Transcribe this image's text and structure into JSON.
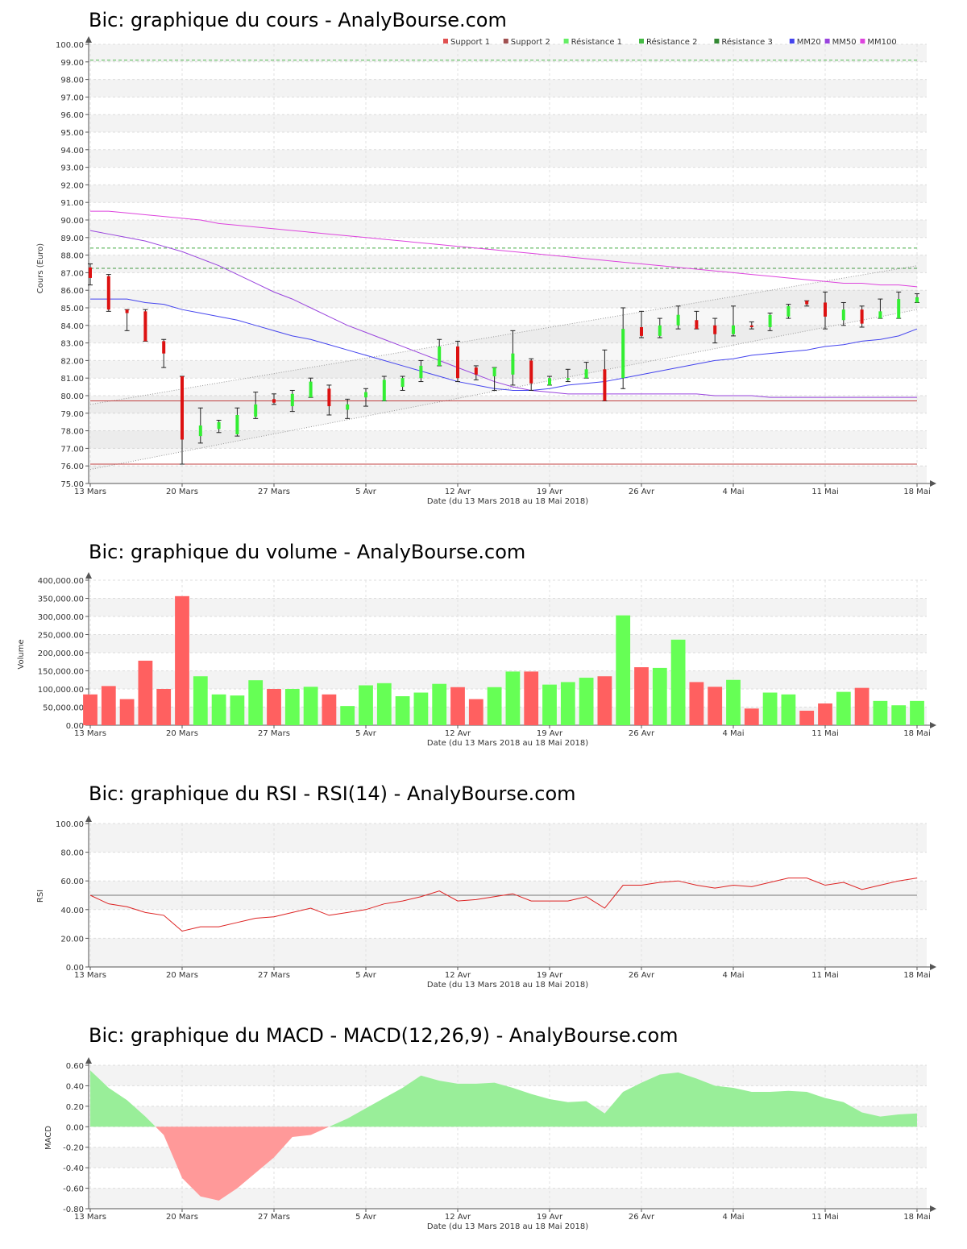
{
  "chart_data": [
    {
      "type": "candlestick",
      "title": "Bic: graphique du cours - AnalyBourse.com",
      "xlabel": "Date (du 13 Mars 2018 au 18 Mai 2018)",
      "ylabel": "Cours (Euro)",
      "ylim": [
        75,
        100
      ],
      "yticks": [
        "75.00",
        "76.00",
        "77.00",
        "78.00",
        "79.00",
        "80.00",
        "81.00",
        "82.00",
        "83.00",
        "84.00",
        "85.00",
        "86.00",
        "87.00",
        "88.00",
        "89.00",
        "90.00",
        "91.00",
        "92.00",
        "93.00",
        "94.00",
        "95.00",
        "96.00",
        "97.00",
        "98.00",
        "99.00",
        "100.00"
      ],
      "xticks": [
        {
          "i": 0,
          "label": "13 Mars"
        },
        {
          "i": 5,
          "label": "20 Mars"
        },
        {
          "i": 10,
          "label": "27 Mars"
        },
        {
          "i": 15,
          "label": "5 Avr"
        },
        {
          "i": 20,
          "label": "12 Avr"
        },
        {
          "i": 25,
          "label": "19 Avr"
        },
        {
          "i": 30,
          "label": "26 Avr"
        },
        {
          "i": 35,
          "label": "4 Mai"
        },
        {
          "i": 40,
          "label": "11 Mai"
        },
        {
          "i": 45,
          "label": "18 Mai"
        }
      ],
      "legend": [
        {
          "name": "Support 1",
          "color": "#e05050"
        },
        {
          "name": "Support 2",
          "color": "#a05050"
        },
        {
          "name": "Résistance 1",
          "color": "#66ee66"
        },
        {
          "name": "Résistance 2",
          "color": "#44bb44"
        },
        {
          "name": "Résistance 3",
          "color": "#338833"
        },
        {
          "name": "MM20",
          "color": "#4444ee"
        },
        {
          "name": "MM50",
          "color": "#9944dd"
        },
        {
          "name": "MM100",
          "color": "#dd44dd"
        }
      ],
      "levels": {
        "support_1": 79.7,
        "support_2": 76.1,
        "resistance_1": 87.25,
        "resistance_2": 88.4,
        "resistance_3": 99.1
      },
      "trend_upper": [
        79.5,
        87.4
      ],
      "trend_lower": [
        75.8,
        84.9
      ],
      "candles": [
        {
          "o": 87.3,
          "c": 86.7,
          "h": 87.5,
          "l": 86.3
        },
        {
          "o": 86.8,
          "c": 84.9,
          "h": 86.9,
          "l": 84.8
        },
        {
          "o": 84.9,
          "c": 84.7,
          "h": 84.9,
          "l": 83.7
        },
        {
          "o": 84.8,
          "c": 83.1,
          "h": 84.9,
          "l": 83.1
        },
        {
          "o": 83.1,
          "c": 82.4,
          "h": 83.2,
          "l": 81.6
        },
        {
          "o": 81.1,
          "c": 77.5,
          "h": 81.1,
          "l": 76.1
        },
        {
          "o": 77.7,
          "c": 78.3,
          "h": 79.3,
          "l": 77.3
        },
        {
          "o": 78.1,
          "c": 78.5,
          "h": 78.6,
          "l": 77.9
        },
        {
          "o": 77.8,
          "c": 78.9,
          "h": 79.3,
          "l": 77.7
        },
        {
          "o": 78.8,
          "c": 79.5,
          "h": 80.2,
          "l": 78.7
        },
        {
          "o": 79.8,
          "c": 79.6,
          "h": 80.1,
          "l": 79.5
        },
        {
          "o": 79.4,
          "c": 80.1,
          "h": 80.3,
          "l": 79.1
        },
        {
          "o": 79.9,
          "c": 80.8,
          "h": 81.0,
          "l": 79.9
        },
        {
          "o": 80.4,
          "c": 79.4,
          "h": 80.6,
          "l": 78.9
        },
        {
          "o": 79.2,
          "c": 79.5,
          "h": 79.8,
          "l": 78.7
        },
        {
          "o": 79.9,
          "c": 80.2,
          "h": 80.4,
          "l": 79.4
        },
        {
          "o": 79.7,
          "c": 80.9,
          "h": 81.1,
          "l": 79.7
        },
        {
          "o": 80.5,
          "c": 81.0,
          "h": 81.1,
          "l": 80.3
        },
        {
          "o": 81.0,
          "c": 81.7,
          "h": 82.0,
          "l": 80.8
        },
        {
          "o": 81.7,
          "c": 82.8,
          "h": 83.2,
          "l": 81.7
        },
        {
          "o": 82.8,
          "c": 81.0,
          "h": 83.1,
          "l": 80.8
        },
        {
          "o": 81.6,
          "c": 81.2,
          "h": 81.7,
          "l": 80.9
        },
        {
          "o": 81.1,
          "c": 81.6,
          "h": 81.6,
          "l": 80.3
        },
        {
          "o": 81.2,
          "c": 82.4,
          "h": 83.7,
          "l": 80.6
        },
        {
          "o": 82.0,
          "c": 80.7,
          "h": 82.1,
          "l": 80.3
        },
        {
          "o": 80.6,
          "c": 81.0,
          "h": 81.1,
          "l": 80.6
        },
        {
          "o": 80.9,
          "c": 81.0,
          "h": 81.5,
          "l": 80.8
        },
        {
          "o": 81.0,
          "c": 81.5,
          "h": 81.9,
          "l": 81.0
        },
        {
          "o": 81.5,
          "c": 79.7,
          "h": 82.6,
          "l": 79.7
        },
        {
          "o": 81.0,
          "c": 83.8,
          "h": 85.0,
          "l": 80.4
        },
        {
          "o": 83.9,
          "c": 83.4,
          "h": 84.8,
          "l": 83.3
        },
        {
          "o": 83.4,
          "c": 84.0,
          "h": 84.4,
          "l": 83.3
        },
        {
          "o": 84.0,
          "c": 84.6,
          "h": 85.1,
          "l": 83.8
        },
        {
          "o": 84.3,
          "c": 83.8,
          "h": 84.8,
          "l": 83.8
        },
        {
          "o": 84.0,
          "c": 83.5,
          "h": 84.4,
          "l": 83.0
        },
        {
          "o": 83.5,
          "c": 84.0,
          "h": 85.1,
          "l": 83.4
        },
        {
          "o": 84.0,
          "c": 83.9,
          "h": 84.2,
          "l": 83.8
        },
        {
          "o": 83.9,
          "c": 84.6,
          "h": 84.7,
          "l": 83.7
        },
        {
          "o": 84.5,
          "c": 85.1,
          "h": 85.2,
          "l": 84.4
        },
        {
          "o": 85.4,
          "c": 85.2,
          "h": 85.4,
          "l": 85.1
        },
        {
          "o": 85.3,
          "c": 84.5,
          "h": 85.9,
          "l": 83.8
        },
        {
          "o": 84.3,
          "c": 84.9,
          "h": 85.3,
          "l": 84.0
        },
        {
          "o": 84.9,
          "c": 84.1,
          "h": 85.1,
          "l": 83.9
        },
        {
          "o": 84.4,
          "c": 84.8,
          "h": 85.5,
          "l": 84.4
        },
        {
          "o": 84.4,
          "c": 85.5,
          "h": 85.9,
          "l": 84.4
        },
        {
          "o": 85.3,
          "c": 85.6,
          "h": 85.8,
          "l": 85.3
        }
      ],
      "mm20": [
        85.5,
        85.5,
        85.5,
        85.3,
        85.2,
        84.9,
        84.7,
        84.5,
        84.3,
        84.0,
        83.7,
        83.4,
        83.2,
        82.9,
        82.6,
        82.3,
        82.0,
        81.7,
        81.4,
        81.1,
        80.8,
        80.6,
        80.4,
        80.3,
        80.3,
        80.4,
        80.6,
        80.7,
        80.8,
        81.0,
        81.2,
        81.4,
        81.6,
        81.8,
        82.0,
        82.1,
        82.3,
        82.4,
        82.5,
        82.6,
        82.8,
        82.9,
        83.1,
        83.2,
        83.4,
        83.8
      ],
      "mm50": [
        89.4,
        89.2,
        89.0,
        88.8,
        88.5,
        88.2,
        87.8,
        87.4,
        86.9,
        86.4,
        85.9,
        85.5,
        85.0,
        84.5,
        84.0,
        83.6,
        83.2,
        82.8,
        82.4,
        82.0,
        81.6,
        81.2,
        80.8,
        80.5,
        80.3,
        80.2,
        80.1,
        80.1,
        80.1,
        80.1,
        80.1,
        80.1,
        80.1,
        80.1,
        80.0,
        80.0,
        80.0,
        79.9,
        79.9,
        79.9,
        79.9,
        79.9,
        79.9,
        79.9,
        79.9,
        79.9
      ],
      "mm100": [
        90.5,
        90.5,
        90.4,
        90.3,
        90.2,
        90.1,
        90.0,
        89.8,
        89.7,
        89.6,
        89.5,
        89.4,
        89.3,
        89.2,
        89.1,
        89.0,
        88.9,
        88.8,
        88.7,
        88.6,
        88.5,
        88.4,
        88.3,
        88.2,
        88.1,
        88.0,
        87.9,
        87.8,
        87.7,
        87.6,
        87.5,
        87.4,
        87.3,
        87.2,
        87.1,
        87.0,
        86.9,
        86.8,
        86.7,
        86.6,
        86.5,
        86.4,
        86.4,
        86.3,
        86.3,
        86.2
      ]
    },
    {
      "type": "bar",
      "title": "Bic: graphique du volume - AnalyBourse.com",
      "xlabel": "Date (du 13 Mars 2018 au 18 Mai 2018)",
      "ylabel": "Volume",
      "ylim": [
        0,
        400000
      ],
      "yticks": [
        "0.00",
        "50,000.00",
        "100,000.00",
        "150,000.00",
        "200,000.00",
        "250,000.00",
        "300,000.00",
        "350,000.00",
        "400,000.00"
      ],
      "xticks": [
        {
          "i": 0,
          "label": "13 Mars"
        },
        {
          "i": 5,
          "label": "20 Mars"
        },
        {
          "i": 10,
          "label": "27 Mars"
        },
        {
          "i": 15,
          "label": "5 Avr"
        },
        {
          "i": 20,
          "label": "12 Avr"
        },
        {
          "i": 25,
          "label": "19 Avr"
        },
        {
          "i": 30,
          "label": "26 Avr"
        },
        {
          "i": 35,
          "label": "4 Mai"
        },
        {
          "i": 40,
          "label": "11 Mai"
        },
        {
          "i": 45,
          "label": "18 Mai"
        }
      ],
      "values": [
        85000,
        108000,
        72000,
        178000,
        100000,
        356000,
        135000,
        85000,
        82000,
        124000,
        100000,
        100000,
        106000,
        85000,
        53000,
        110000,
        116000,
        80000,
        90000,
        114000,
        105000,
        72000,
        105000,
        148000,
        148000,
        112000,
        119000,
        131000,
        135000,
        303000,
        160000,
        158000,
        236000,
        119000,
        106000,
        125000,
        46000,
        90000,
        85000,
        40000,
        60000,
        92000,
        103000,
        67000,
        55000,
        67000
      ],
      "colors": [
        "#ff6060",
        "#66ff55"
      ],
      "up": [
        false,
        false,
        false,
        false,
        false,
        false,
        true,
        true,
        true,
        true,
        false,
        true,
        true,
        false,
        true,
        true,
        true,
        true,
        true,
        true,
        false,
        false,
        true,
        true,
        false,
        true,
        true,
        true,
        false,
        true,
        false,
        true,
        true,
        false,
        false,
        true,
        false,
        true,
        true,
        false,
        false,
        true,
        false,
        true,
        true,
        true
      ]
    },
    {
      "type": "line",
      "title": "Bic: graphique du RSI - RSI(14) - AnalyBourse.com",
      "xlabel": "Date (du 13 Mars 2018 au 18 Mai 2018)",
      "ylabel": "RSI",
      "ylim": [
        0,
        100
      ],
      "yticks": [
        "0.00",
        "20.00",
        "40.00",
        "60.00",
        "80.00",
        "100.00"
      ],
      "xticks": [
        {
          "i": 0,
          "label": "13 Mars"
        },
        {
          "i": 5,
          "label": "20 Mars"
        },
        {
          "i": 10,
          "label": "27 Mars"
        },
        {
          "i": 15,
          "label": "5 Avr"
        },
        {
          "i": 20,
          "label": "12 Avr"
        },
        {
          "i": 25,
          "label": "19 Avr"
        },
        {
          "i": 30,
          "label": "26 Avr"
        },
        {
          "i": 35,
          "label": "4 Mai"
        },
        {
          "i": 40,
          "label": "11 Mai"
        },
        {
          "i": 45,
          "label": "18 Mai"
        }
      ],
      "reference": 50,
      "values": [
        50,
        44,
        42,
        38,
        36,
        25,
        28,
        28,
        31,
        34,
        35,
        38,
        41,
        36,
        38,
        40,
        44,
        46,
        49,
        53,
        46,
        47,
        49,
        51,
        46,
        46,
        46,
        49,
        41,
        57,
        57,
        59,
        60,
        57,
        55,
        57,
        56,
        59,
        62,
        62,
        57,
        59,
        54,
        57,
        60,
        62
      ]
    },
    {
      "type": "area",
      "title": "Bic: graphique du MACD - MACD(12,26,9) - AnalyBourse.com",
      "xlabel": "Date (du 13 Mars 2018 au 18 Mai 2018)",
      "ylabel": "MACD",
      "ylim": [
        -0.8,
        0.6
      ],
      "yticks": [
        "-0.80",
        "-0.60",
        "-0.40",
        "-0.20",
        "0.00",
        "0.20",
        "0.40",
        "0.60"
      ],
      "xticks": [
        {
          "i": 0,
          "label": "13 Mars"
        },
        {
          "i": 5,
          "label": "20 Mars"
        },
        {
          "i": 10,
          "label": "27 Mars"
        },
        {
          "i": 15,
          "label": "5 Avr"
        },
        {
          "i": 20,
          "label": "12 Avr"
        },
        {
          "i": 25,
          "label": "19 Avr"
        },
        {
          "i": 30,
          "label": "26 Avr"
        },
        {
          "i": 35,
          "label": "4 Mai"
        },
        {
          "i": 40,
          "label": "11 Mai"
        },
        {
          "i": 45,
          "label": "18 Mai"
        }
      ],
      "colors": [
        "#99ee99",
        "#ff9999"
      ],
      "values": [
        0.55,
        0.38,
        0.26,
        0.1,
        -0.08,
        -0.5,
        -0.68,
        -0.72,
        -0.6,
        -0.45,
        -0.3,
        -0.1,
        -0.08,
        0.0,
        0.08,
        0.18,
        0.28,
        0.38,
        0.5,
        0.45,
        0.42,
        0.42,
        0.43,
        0.38,
        0.32,
        0.27,
        0.24,
        0.25,
        0.13,
        0.34,
        0.43,
        0.51,
        0.53,
        0.47,
        0.4,
        0.38,
        0.34,
        0.34,
        0.35,
        0.34,
        0.28,
        0.24,
        0.14,
        0.1,
        0.12,
        0.13
      ]
    }
  ]
}
